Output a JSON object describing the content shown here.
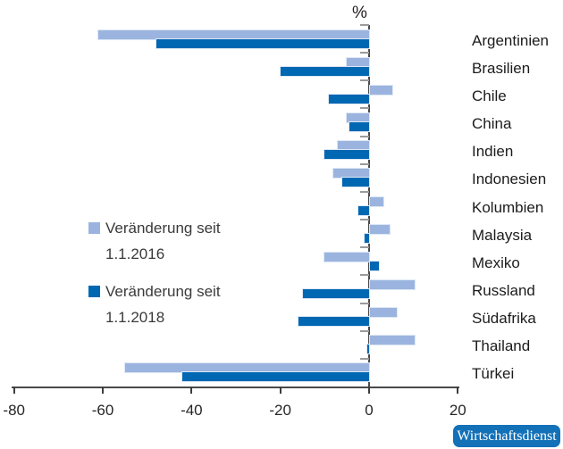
{
  "chart_data": {
    "type": "bar",
    "orientation": "horizontal",
    "title": "%",
    "categories": [
      "Argentinien",
      "Brasilien",
      "Chile",
      "China",
      "Indien",
      "Indonesien",
      "Kolumbien",
      "Malaysia",
      "Mexiko",
      "Russland",
      "Südafrika",
      "Thailand",
      "Türkei"
    ],
    "series": [
      {
        "name": "Veränderung seit 1.1.2016",
        "color": "#9bb4df",
        "values": [
          -61,
          -5,
          5,
          -5,
          -7,
          -8,
          3,
          4.5,
          -10,
          10,
          6,
          10,
          -55
        ]
      },
      {
        "name": "Veränderung seit 1.1.2018",
        "color": "#0067b2",
        "values": [
          -48,
          -20,
          -9,
          -4.5,
          -10,
          -6,
          -2.5,
          -1,
          2,
          -15,
          -16,
          -0.5,
          -42
        ]
      }
    ],
    "xlim": [
      -80,
      20
    ],
    "x_ticks": [
      -80,
      -60,
      -40,
      -20,
      0,
      20
    ],
    "grid": false,
    "legend_position": "middle-left",
    "unit": "%"
  },
  "legend": {
    "items": [
      {
        "line1": "Veränderung seit",
        "line2": "1.1.2016",
        "color": "#9bb4df"
      },
      {
        "line1": "Veränderung seit",
        "line2": "1.1.2018",
        "color": "#0067b2"
      }
    ]
  },
  "title": {
    "unit_label": "%"
  },
  "source_badge": {
    "label": "Wirtschaftsdienst",
    "color": "#1371b8"
  },
  "colors": {
    "series_2016": "#9bb4df",
    "series_2018": "#0067b2",
    "axis": "#4a4a4a",
    "category_tick": "#9a9a9a",
    "text": "#231f20",
    "badge": "#1371b8"
  }
}
